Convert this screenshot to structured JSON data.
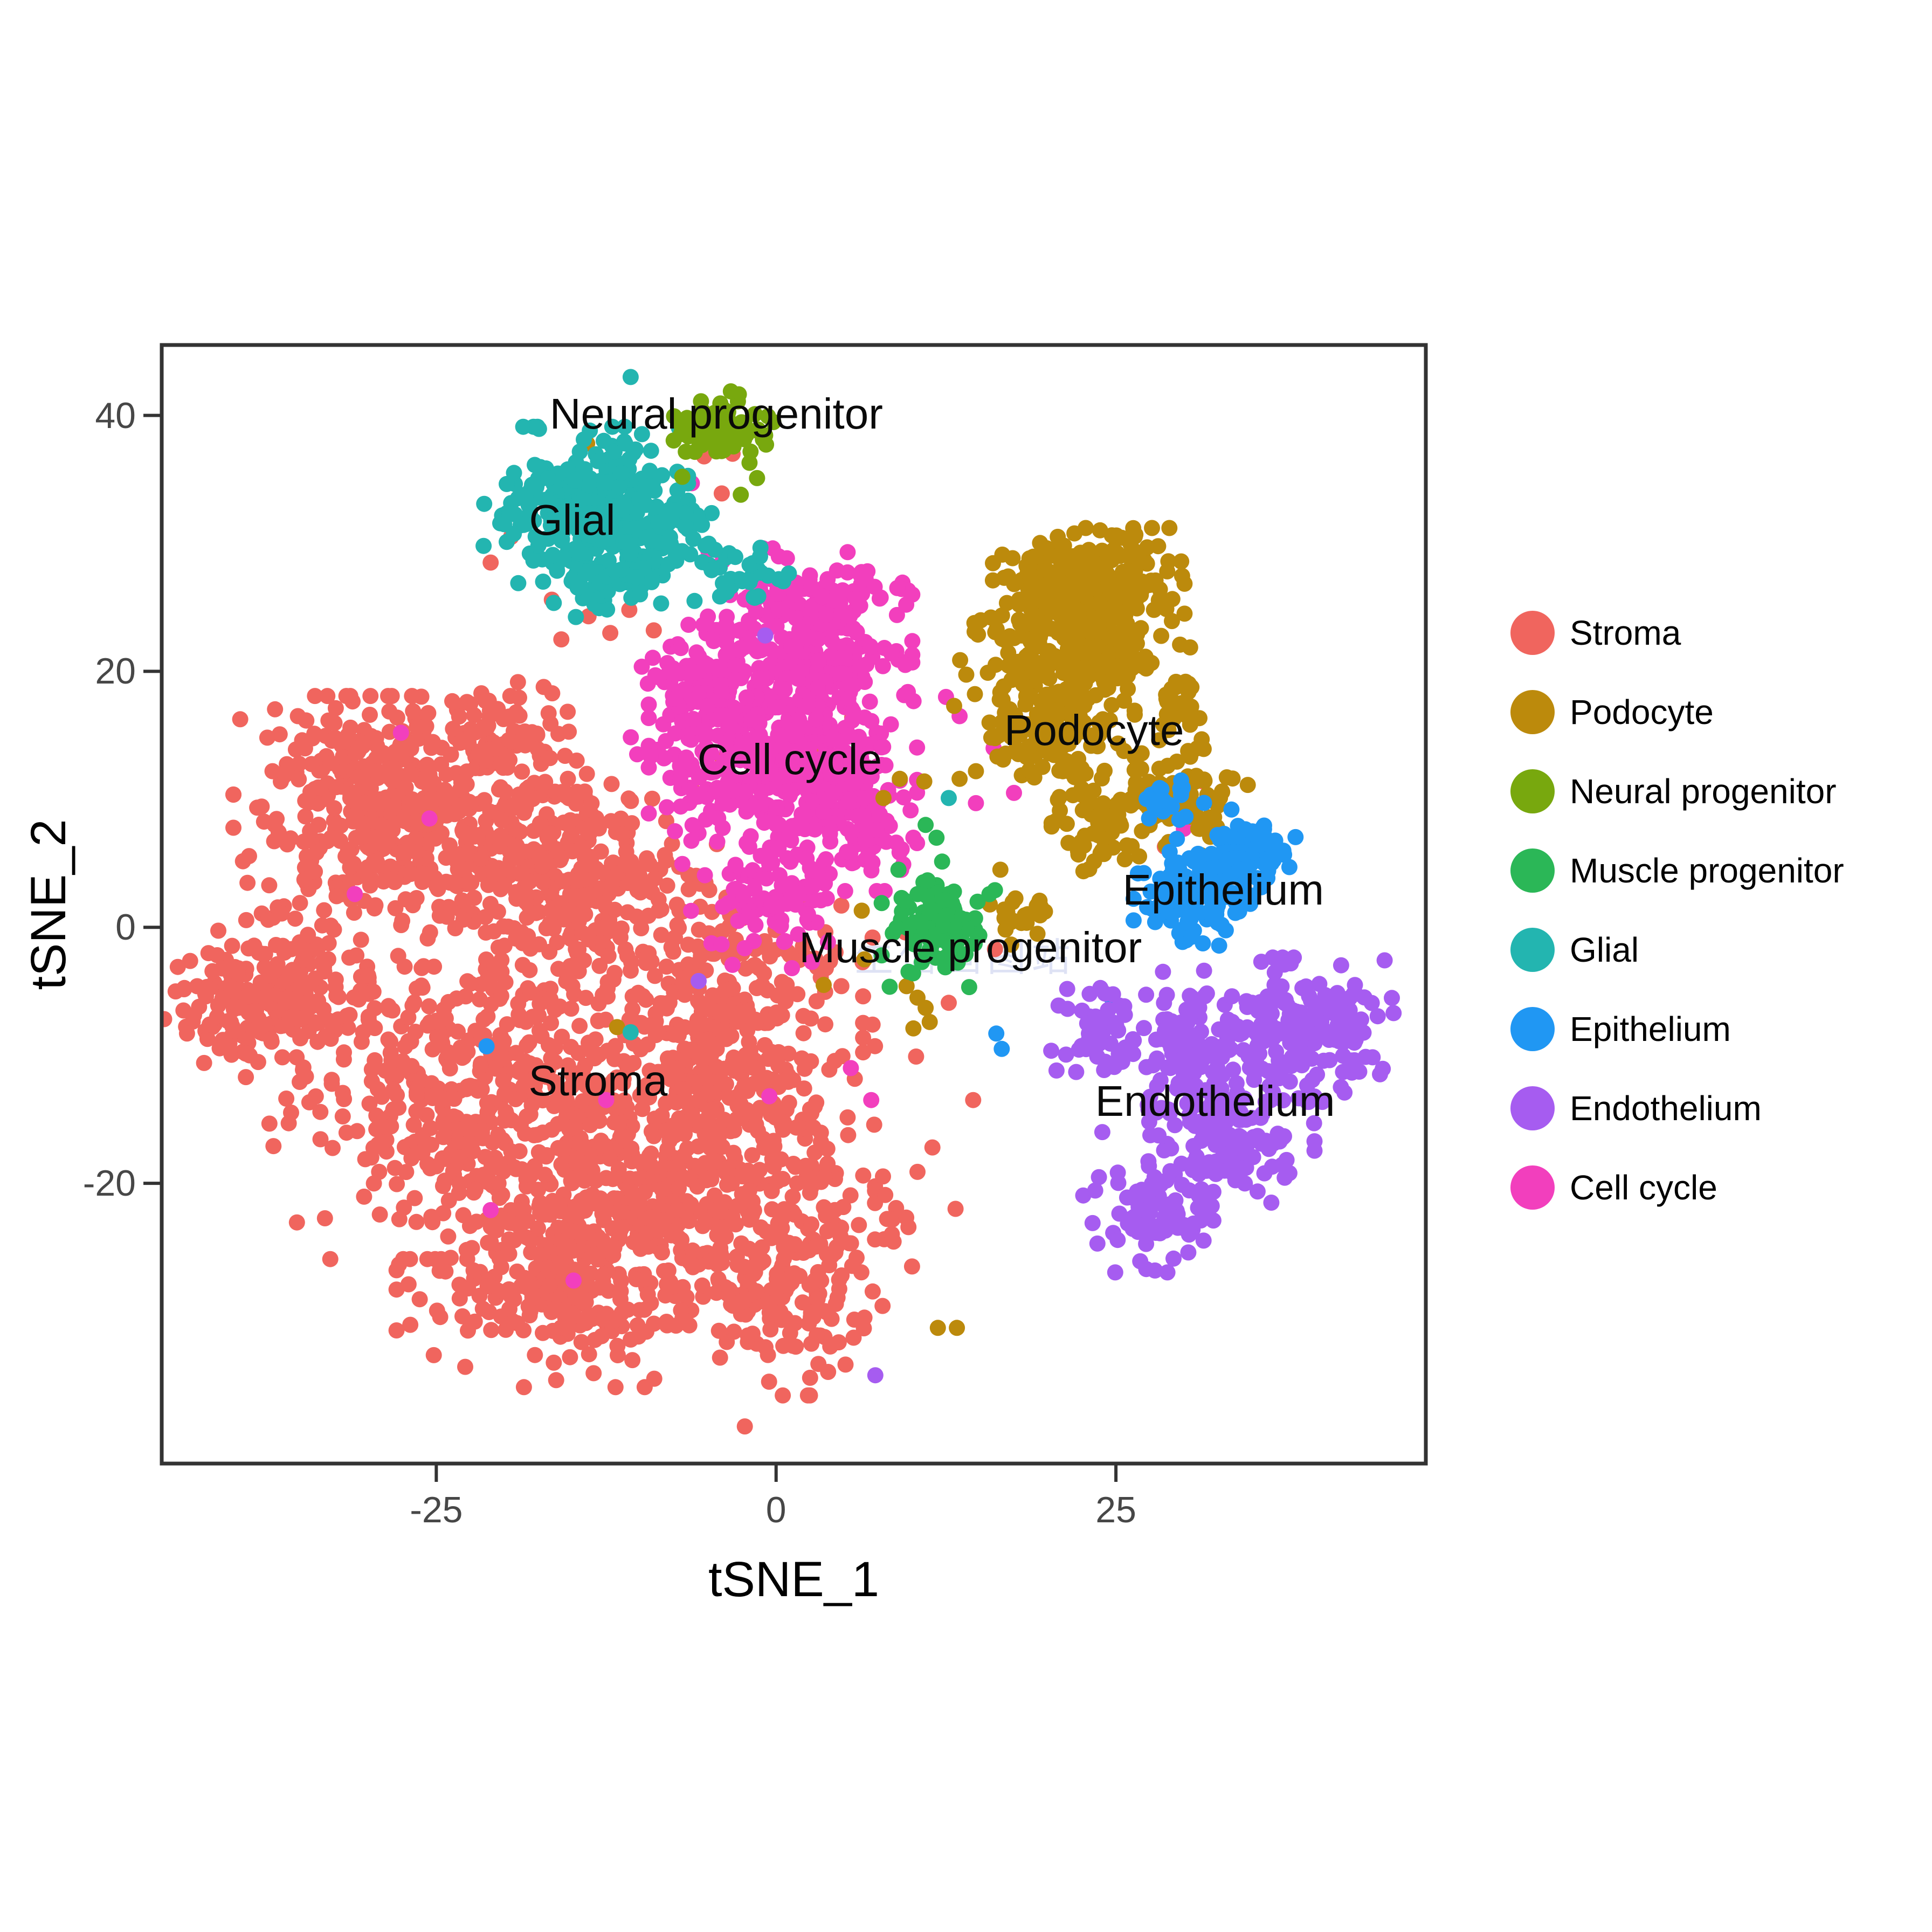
{
  "chart_data": {
    "type": "scatter",
    "title": "",
    "xlabel": "tSNE_1",
    "ylabel": "tSNE_2",
    "xlim": [
      -45.2,
      47.8
    ],
    "ylim": [
      -41.9,
      45.5
    ],
    "x_ticks": [
      -25,
      0,
      25
    ],
    "y_ticks": [
      -20,
      0,
      20,
      40
    ],
    "grid": false,
    "legend_position": "right",
    "point_radius_px": 15,
    "panel_border_color": "#333333",
    "tick_color": "#333333",
    "tick_label_color": "#474747",
    "series": [
      {
        "id": "stroma",
        "name": "Stroma",
        "color": "#F0655E",
        "blobs": [
          {
            "x": -27,
            "y": 7.5,
            "sx": 5.5,
            "sy": 4.5,
            "n": 450
          },
          {
            "x": -14.5,
            "y": 4,
            "sx": 4.5,
            "sy": 4.0,
            "n": 300
          },
          {
            "x": -37.5,
            "y": -5.5,
            "sx": 3.2,
            "sy": 2.8,
            "n": 210
          },
          {
            "x": -22,
            "y": -13,
            "sx": 6.5,
            "sy": 5.5,
            "n": 450
          },
          {
            "x": -8,
            "y": -17,
            "sx": 6.5,
            "sy": 6.0,
            "n": 450
          },
          {
            "x": -15,
            "y": -27,
            "sx": 5.5,
            "sy": 3.8,
            "n": 300
          },
          {
            "x": 1,
            "y": -26,
            "sx": 4.0,
            "sy": 4.5,
            "n": 210
          },
          {
            "x": -3,
            "y": -6,
            "sx": 4.0,
            "sy": 4.0,
            "n": 210
          },
          {
            "x": -30,
            "y": 13,
            "sx": 3.0,
            "sy": 2.0,
            "n": 80
          },
          {
            "x": -20,
            "y": 16,
            "sx": 2.5,
            "sy": 1.6,
            "n": 55
          }
        ],
        "strays": [
          [
            -19.5,
            30.5
          ],
          [
            -21,
            28.5
          ],
          [
            -16.5,
            25.6
          ],
          [
            -13.8,
            24.3
          ],
          [
            -12.2,
            23
          ],
          [
            -15.8,
            22.5
          ],
          [
            -10.8,
            24.8
          ],
          [
            -9,
            23.2
          ],
          [
            -3.2,
            37
          ],
          [
            -5.3,
            36.8
          ],
          [
            -4,
            33.9
          ],
          [
            1.8,
            19.8
          ],
          [
            2.8,
            14.1
          ],
          [
            5.6,
            16.4
          ],
          [
            3.2,
            10.1
          ],
          [
            7.5,
            8.4
          ],
          [
            4.8,
            1.7
          ],
          [
            7.1,
            -0.8
          ],
          [
            9.5,
            -0.4
          ],
          [
            4.8,
            -4.6
          ],
          [
            7.1,
            -7.6
          ],
          [
            10.3,
            -10.1
          ],
          [
            12.7,
            -5.9
          ],
          [
            16.1,
            -1.7
          ],
          [
            28.6,
            6.3
          ],
          [
            31.4,
            11.4
          ],
          [
            14.5,
            -13.5
          ],
          [
            11.5,
            -17.2
          ],
          [
            13.2,
            -22
          ],
          [
            10,
            -26.5
          ],
          [
            6.5,
            -30.5
          ],
          [
            2.5,
            -35.2
          ],
          [
            -2.3,
            -39
          ]
        ]
      },
      {
        "id": "cellcycle",
        "name": "Cell cycle",
        "color": "#F23FBD",
        "blobs": [
          {
            "x": 2.5,
            "y": 23.5,
            "sx": 3.2,
            "sy": 2.6,
            "n": 260
          },
          {
            "x": 0.5,
            "y": 13,
            "sx": 4.2,
            "sy": 3.8,
            "n": 420
          },
          {
            "x": -5.5,
            "y": 18,
            "sx": 2.4,
            "sy": 2.4,
            "n": 120
          },
          {
            "x": 5.5,
            "y": 8,
            "sx": 2.2,
            "sy": 2.2,
            "n": 80
          },
          {
            "x": -1,
            "y": 1.5,
            "sx": 2.5,
            "sy": 2.0,
            "n": 70
          }
        ],
        "strays": [
          [
            -6.2,
            34.7
          ],
          [
            -27.6,
            15.2
          ],
          [
            -25.5,
            8.5
          ],
          [
            -31,
            2.6
          ],
          [
            30,
            7.7
          ],
          [
            16,
            14
          ],
          [
            12.5,
            18
          ],
          [
            9.5,
            20.5
          ],
          [
            13.5,
            16.5
          ],
          [
            14.7,
            9.7
          ],
          [
            17.5,
            10.5
          ],
          [
            10.1,
            7
          ],
          [
            5.5,
            -11
          ],
          [
            7,
            -13.5
          ],
          [
            -21,
            -22.1
          ],
          [
            -14.9,
            -27.6
          ],
          [
            -12.5,
            -13.5
          ],
          [
            -0.5,
            -13.2
          ]
        ]
      },
      {
        "id": "podocyte",
        "name": "Podocyte",
        "color": "#BC8A0C",
        "blobs": [
          {
            "x": 23,
            "y": 26.5,
            "sx": 3.0,
            "sy": 2.0,
            "n": 260
          },
          {
            "x": 22,
            "y": 21,
            "sx": 3.6,
            "sy": 2.2,
            "n": 190
          },
          {
            "x": 20.5,
            "y": 15,
            "sx": 2.5,
            "sy": 2.5,
            "n": 120
          },
          {
            "x": 30,
            "y": 10,
            "sx": 2.0,
            "sy": 2.0,
            "n": 70
          },
          {
            "x": 24.5,
            "y": 8,
            "sx": 1.8,
            "sy": 1.8,
            "n": 60
          },
          {
            "x": 29.5,
            "y": 17.5,
            "sx": 0.7,
            "sy": 1.6,
            "n": 26
          },
          {
            "x": 18,
            "y": 1,
            "sx": 1.3,
            "sy": 1.0,
            "n": 22
          }
        ],
        "strays": [
          [
            -13.9,
            37.8
          ],
          [
            -11.7,
            -7.8
          ],
          [
            6.3,
            1.3
          ],
          [
            6.5,
            -2.5
          ],
          [
            3.5,
            -4.5
          ],
          [
            9.6,
            -4.6
          ],
          [
            10.4,
            -5.5
          ],
          [
            11,
            -6.3
          ],
          [
            11.3,
            -7.4
          ],
          [
            10.1,
            -7.9
          ],
          [
            11.9,
            -31.3
          ],
          [
            13.3,
            -31.3
          ],
          [
            13.1,
            17.3
          ],
          [
            15.7,
            16
          ],
          [
            9.1,
            11.6
          ],
          [
            10.9,
            11.4
          ],
          [
            13.5,
            11.6
          ],
          [
            14.7,
            12.2
          ],
          [
            7.9,
            10.1
          ],
          [
            16.5,
            4.5
          ]
        ]
      },
      {
        "id": "glial",
        "name": "Glial",
        "color": "#23B5B0",
        "blobs": [
          {
            "x": -14,
            "y": 33,
            "sx": 3.2,
            "sy": 2.6,
            "n": 300
          },
          {
            "x": -12.5,
            "y": 27.5,
            "sx": 2.0,
            "sy": 1.5,
            "n": 60
          },
          {
            "x": -8.5,
            "y": 30.5,
            "sx": 1.6,
            "sy": 1.6,
            "n": 45
          },
          {
            "x": -2.5,
            "y": 27.5,
            "sx": 1.5,
            "sy": 1.2,
            "n": 30
          }
        ],
        "strays": [
          [
            -11.1,
            37.8
          ],
          [
            -10.7,
            43
          ],
          [
            -20,
            31.5
          ],
          [
            -10.7,
            -8.2
          ],
          [
            12.7,
            10.1
          ],
          [
            -6,
            25.5
          ],
          [
            -4.5,
            29.5
          ]
        ]
      },
      {
        "id": "neural",
        "name": "Neural progenitor",
        "color": "#78A80E",
        "blobs": [
          {
            "x": -4.2,
            "y": 39,
            "sx": 1.7,
            "sy": 1.4,
            "n": 75
          }
        ],
        "strays": [
          [
            -6.9,
            35.2
          ],
          [
            -1.4,
            35.1
          ],
          [
            -2.6,
            33.8
          ]
        ]
      },
      {
        "id": "muscle",
        "name": "Muscle progenitor",
        "color": "#2BB757",
        "blobs": [
          {
            "x": 12,
            "y": 0.5,
            "sx": 1.8,
            "sy": 2.2,
            "n": 105
          }
        ],
        "strays": [
          [
            11,
            8
          ],
          [
            11.8,
            7
          ],
          [
            16.1,
            2.9
          ],
          [
            9,
            4.5
          ]
        ]
      },
      {
        "id": "epithelium",
        "name": "Epithelium",
        "color": "#2097F3",
        "blobs": [
          {
            "x": 35,
            "y": 5.8,
            "sx": 1.5,
            "sy": 1.2,
            "n": 70
          },
          {
            "x": 31,
            "y": 2.8,
            "sx": 2.0,
            "sy": 1.8,
            "n": 125
          },
          {
            "x": 29,
            "y": 9.7,
            "sx": 1.3,
            "sy": 0.8,
            "n": 22
          }
        ],
        "strays": [
          [
            16.2,
            -8.3
          ],
          [
            16.6,
            -9.5
          ],
          [
            24.6,
            -5.4
          ],
          [
            -21.3,
            -9.3
          ],
          [
            33.5,
            9.2
          ]
        ]
      },
      {
        "id": "endothelium",
        "name": "Endothelium",
        "color": "#A65CF0",
        "blobs": [
          {
            "x": 24,
            "y": -8.5,
            "sx": 1.6,
            "sy": 1.6,
            "n": 55
          },
          {
            "x": 30,
            "y": -9.5,
            "sx": 1.7,
            "sy": 2.6,
            "n": 90
          },
          {
            "x": 38.5,
            "y": -8,
            "sx": 3.0,
            "sy": 2.4,
            "n": 180
          },
          {
            "x": 33.5,
            "y": -16.5,
            "sx": 2.6,
            "sy": 2.4,
            "n": 120
          },
          {
            "x": 28,
            "y": -22.5,
            "sx": 2.3,
            "sy": 1.9,
            "n": 90
          }
        ],
        "strays": [
          [
            24,
            -16
          ],
          [
            -5.7,
            -4.2
          ],
          [
            7.3,
            -35
          ],
          [
            -0.8,
            22.8
          ]
        ]
      }
    ],
    "cluster_labels": [
      {
        "text": "Neural progenitor",
        "x": -4.4,
        "y": 40.1
      },
      {
        "text": "Glial",
        "x": -15.0,
        "y": 31.8
      },
      {
        "text": "Cell cycle",
        "x": 1.0,
        "y": 13.1
      },
      {
        "text": "Podocyte",
        "x": 23.4,
        "y": 15.4
      },
      {
        "text": "Epithelium",
        "x": 32.9,
        "y": 2.9
      },
      {
        "text": "Muscle progenitor",
        "x": 14.3,
        "y": -1.6
      },
      {
        "text": "Stroma",
        "x": -13.1,
        "y": -12.0
      },
      {
        "text": "Endothelium",
        "x": 32.3,
        "y": -13.6
      }
    ],
    "legend": {
      "items": [
        {
          "label": "Stroma",
          "color": "#F0655E"
        },
        {
          "label": "Podocyte",
          "color": "#BC8A0C"
        },
        {
          "label": "Neural progenitor",
          "color": "#78A80E"
        },
        {
          "label": "Muscle progenitor",
          "color": "#2BB757"
        },
        {
          "label": "Glial",
          "color": "#23B5B0"
        },
        {
          "label": "Epithelium",
          "color": "#2097F3"
        },
        {
          "label": "Endothelium",
          "color": "#A65CF0"
        },
        {
          "label": "Cell cycle",
          "color": "#F23FBD"
        }
      ]
    },
    "watermark": {
      "text": "生信画图站",
      "x": 13.9,
      "y": -3.4,
      "color": "#ADB9E6",
      "opacity": 0.4
    }
  }
}
